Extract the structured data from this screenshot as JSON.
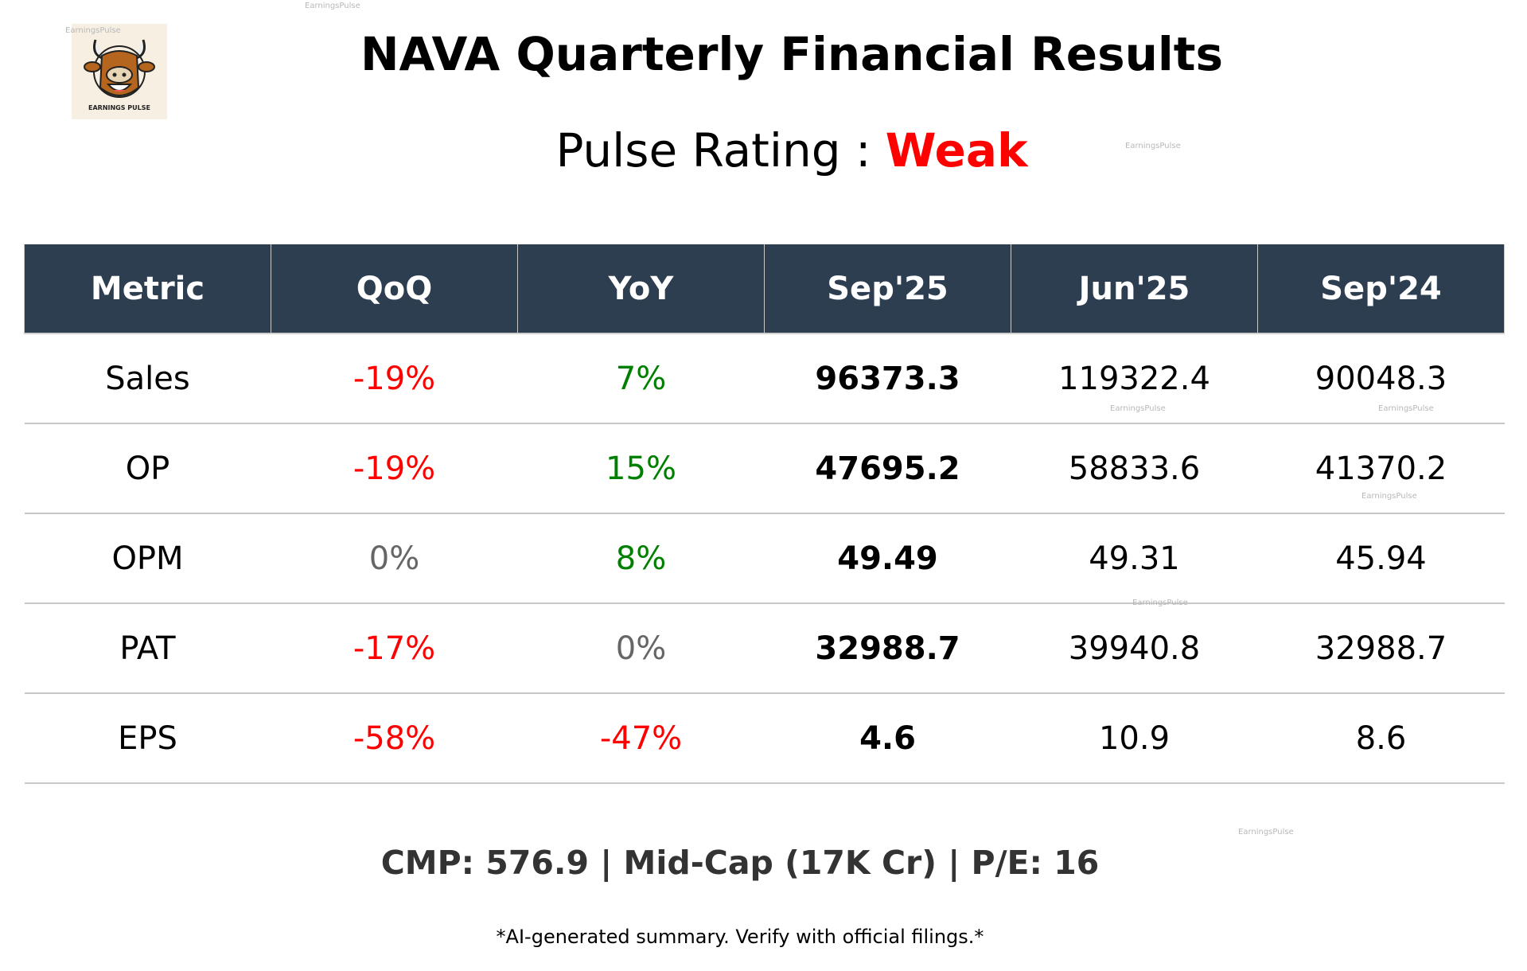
{
  "title": "NAVA Quarterly Financial Results",
  "pulse_rating": {
    "label": "Pulse Rating :",
    "value": "Weak",
    "value_color": "#ff0000"
  },
  "logo": {
    "text": "EARNINGS PULSE"
  },
  "watermark": "EarningsPulse",
  "colors": {
    "header_bg": "#2e3e51",
    "negative": "#ff0000",
    "positive": "#008000",
    "neutral": "#666666"
  },
  "table": {
    "headers": [
      "Metric",
      "QoQ",
      "YoY",
      "Sep'25",
      "Jun'25",
      "Sep'24"
    ],
    "rows": [
      {
        "metric": "Sales",
        "qoq": "-19%",
        "qoq_tone": "negative",
        "yoy": "7%",
        "yoy_tone": "positive",
        "sep25": "96373.3",
        "jun25": "119322.4",
        "sep24": "90048.3"
      },
      {
        "metric": "OP",
        "qoq": "-19%",
        "qoq_tone": "negative",
        "yoy": "15%",
        "yoy_tone": "positive",
        "sep25": "47695.2",
        "jun25": "58833.6",
        "sep24": "41370.2"
      },
      {
        "metric": "OPM",
        "qoq": "0%",
        "qoq_tone": "neutral",
        "yoy": "8%",
        "yoy_tone": "positive",
        "sep25": "49.49",
        "jun25": "49.31",
        "sep24": "45.94"
      },
      {
        "metric": "PAT",
        "qoq": "-17%",
        "qoq_tone": "negative",
        "yoy": "0%",
        "yoy_tone": "neutral",
        "sep25": "32988.7",
        "jun25": "39940.8",
        "sep24": "32988.7"
      },
      {
        "metric": "EPS",
        "qoq": "-58%",
        "qoq_tone": "negative",
        "yoy": "-47%",
        "yoy_tone": "negative",
        "sep25": "4.6",
        "jun25": "10.9",
        "sep24": "8.6"
      }
    ]
  },
  "summary": "CMP: 576.9 | Mid-Cap (17K Cr) | P/E: 16",
  "disclaimer": "*AI-generated summary. Verify with official filings.*"
}
